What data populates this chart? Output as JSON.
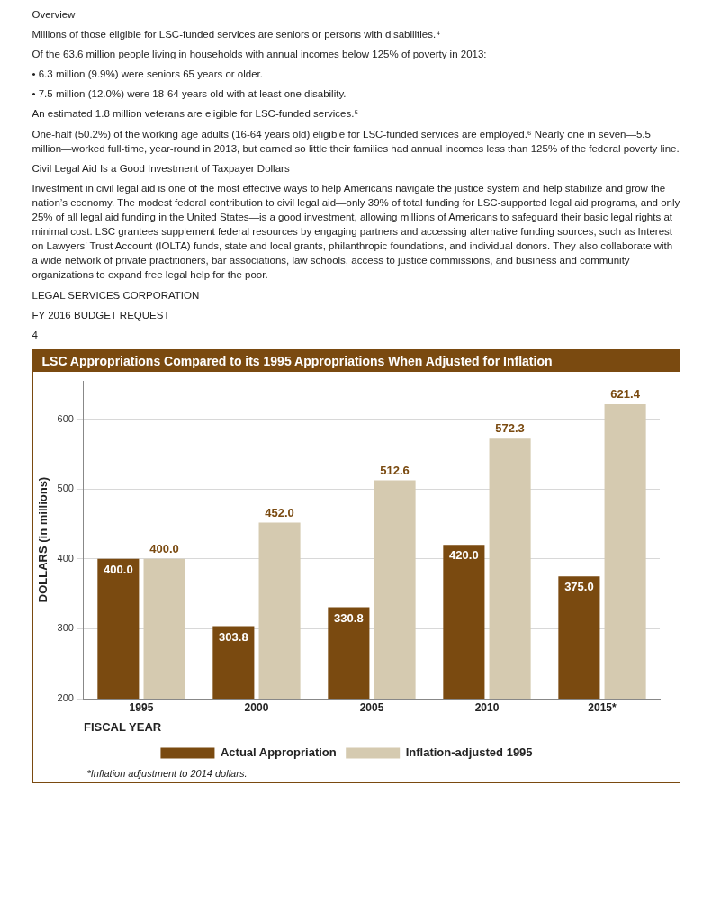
{
  "chart_data": {
    "type": "bar",
    "title": "LSC Appropriations Compared to its 1995 Appropriations When Adjusted for Inflation",
    "xlabel": "FISCAL YEAR",
    "ylabel": "DOLLARS (in millions)",
    "categories": [
      "1995",
      "2000",
      "2005",
      "2010",
      "2015*"
    ],
    "series": [
      {
        "name": "Actual Appropriation",
        "color": "#7a4a10",
        "values": [
          400.0,
          303.8,
          330.8,
          420.0,
          375.0
        ],
        "value_labels": [
          "400.0",
          "303.8",
          "330.8",
          "420.0",
          "375.0"
        ]
      },
      {
        "name": "Inflation-adjusted 1995",
        "color": "#d5cab0",
        "values": [
          400.0,
          452.0,
          512.6,
          572.3,
          621.4
        ],
        "value_labels": [
          "400.0",
          "452.0",
          "512.6",
          "572.3",
          "621.4"
        ]
      }
    ],
    "ylim": [
      200,
      655
    ],
    "yticks": [
      200,
      300,
      400,
      500,
      600
    ],
    "grid": "y",
    "legend": "bottom",
    "annotations": [
      "Overview",
      "Millions of those eligible for LSC-funded services are seniors or persons with disabilities.⁴",
      "Of the 63.6 million people living in households with annual incomes below 125% of poverty in 2013:",
      "• 6.3 million (9.9%) were seniors 65 years or older.",
      "• 7.5 million (12.0%) were 18-64 years old with at least one disability.",
      "An estimated 1.8 million veterans are eligible for LSC-funded services.⁵",
      "One-half (50.2%) of the working age adults (16-64 years old) eligible for LSC-funded services are employed.⁶ Nearly one in seven—5.5 million—worked full-time, year-round in 2013, but earned so little their families had annual incomes less than 125% of the federal poverty line.",
      "Civil Legal Aid Is a Good Investment of Taxpayer Dollars",
      "Investment in civil legal aid is one of the most effective ways to help Americans navigate the justice system and help stabilize and grow the nation’s economy. The modest federal contribution to civil legal aid—only 39% of total funding for LSC-supported legal aid programs, and only 25% of all legal aid funding in the United States—is a good investment, allowing millions of Americans to safeguard their basic legal rights at minimal cost. LSC grantees supplement federal resources by engaging partners and accessing alternative funding sources, such as Interest on Lawyers’ Trust Account (IOLTA) funds, state and local grants, philanthropic foundations, and individual donors. They also collaborate with a wide network of private practitioners, bar associations, law schools, access to justice commissions, and business and community organizations to expand free legal help for the poor.",
      "LEGAL SERVICES CORPORATION",
      "FY 2016 BUDGET REQUEST",
      "4",
      "*Inflation adjustment to 2014 dollars."
    ]
  }
}
